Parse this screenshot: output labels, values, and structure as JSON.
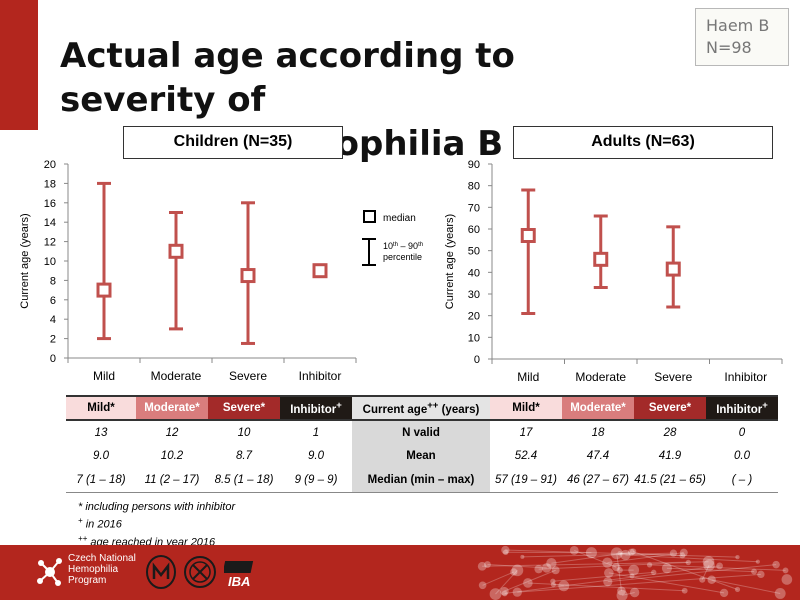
{
  "slide": {
    "title_line1": "Actual age according to severity of",
    "title_line2": "haemophilia B",
    "haem_label": "Haem B",
    "haem_n": "N=98"
  },
  "legend": {
    "median": "median",
    "range_line1": "10",
    "range_sup1": "th",
    "range_mid": " – 90",
    "range_sup2": "th",
    "range_line2": "percentile"
  },
  "chart_data": [
    {
      "type": "scatter",
      "title": "Children (N=35)",
      "ylabel": "Current age (years)",
      "categories": [
        "Mild",
        "Moderate",
        "Severe",
        "Inhibitor"
      ],
      "ylim": [
        0,
        20
      ],
      "yticks": [
        0,
        2,
        4,
        6,
        8,
        10,
        12,
        14,
        16,
        18,
        20
      ],
      "median": [
        7,
        11,
        8.5,
        9
      ],
      "p10": [
        2,
        3,
        1.5,
        9
      ],
      "p90": [
        18,
        15,
        16,
        9
      ],
      "color": "#c0504d"
    },
    {
      "type": "scatter",
      "title": "Adults (N=63)",
      "ylabel": "Current age (years)",
      "categories": [
        "Mild",
        "Moderate",
        "Severe",
        "Inhibitor"
      ],
      "ylim": [
        0,
        90
      ],
      "yticks": [
        0,
        10,
        20,
        30,
        40,
        50,
        60,
        70,
        80,
        90
      ],
      "median": [
        57,
        46,
        41.5,
        null
      ],
      "p10": [
        21,
        33,
        24,
        null
      ],
      "p90": [
        78,
        66,
        61,
        null
      ],
      "color": "#c0504d"
    }
  ],
  "table": {
    "children_head": [
      "Mild*",
      "Moderate*",
      "Severe*",
      "Inhibitor"
    ],
    "inhibitor_sup": "+",
    "mid_head": "Current age",
    "mid_head_sup": "++",
    "mid_head_unit": " (years)",
    "adults_head": [
      "Mild*",
      "Moderate*",
      "Severe*",
      "Inhibitor"
    ],
    "rows": [
      {
        "label": "N valid",
        "children": [
          "13",
          "12",
          "10",
          "1"
        ],
        "adults": [
          "17",
          "18",
          "28",
          "0"
        ]
      },
      {
        "label": "Mean",
        "children": [
          "9.0",
          "10.2",
          "8.7",
          "9.0"
        ],
        "adults": [
          "52.4",
          "47.4",
          "41.9",
          "0.0"
        ]
      },
      {
        "label": "Median (min – max)",
        "children": [
          "7 (1 – 18)",
          "11 (2 – 17)",
          "8.5 (1 – 18)",
          "9 (9 – 9)"
        ],
        "adults": [
          "57 (19 – 91)",
          "46 (27 – 67)",
          "41.5 (21 – 65)",
          "( – )"
        ]
      }
    ],
    "colors": {
      "mild": "#f9dcdc",
      "moderate": "#d97d7d",
      "severe": "#a32a29",
      "inhibitor": "#201a16"
    }
  },
  "footnotes": {
    "f1": "* including persons with inhibitor",
    "f2_sup": "+",
    "f2": " in 2016",
    "f3_sup": "++",
    "f3": " age reached in year 2016"
  },
  "footer": {
    "org_line1": "Czech National",
    "org_line2": "Hemophilia",
    "org_line3": "Program",
    "logo_iba": "IBA"
  }
}
